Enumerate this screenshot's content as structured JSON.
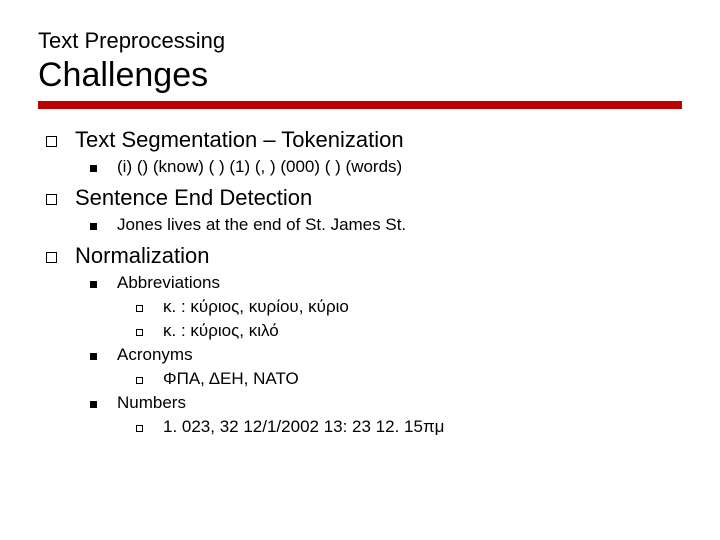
{
  "pretitle": "Text Preprocessing",
  "title": "Challenges",
  "colors": {
    "underline": "#c00000",
    "text": "#000000",
    "background": "#ffffff"
  },
  "typography": {
    "font_family": "Verdana, Geneva, sans-serif",
    "pretitle_size": 22,
    "title_size": 34,
    "l1_size": 22,
    "l2_size": 17,
    "l3_size": 17
  },
  "items": [
    {
      "label": "Text Segmentation – Tokenization",
      "children": [
        {
          "label": "(i) () (know) ( ) (1) (, ) (000) ( ) (words)"
        }
      ]
    },
    {
      "label": "Sentence End Detection",
      "children": [
        {
          "label": "Jones lives at the end of St. James St."
        }
      ]
    },
    {
      "label": "Normalization",
      "children": [
        {
          "label": "Abbreviations",
          "children": [
            {
              "label": "κ. : κύριος, κυρίου, κύριο"
            },
            {
              "label": "κ. : κύριος, κιλό"
            }
          ]
        },
        {
          "label": "Acronyms",
          "children": [
            {
              "label": "ΦΠΑ, ΔΕΗ, ΝΑΤΟ"
            }
          ]
        },
        {
          "label": "Numbers",
          "children": [
            {
              "label": "1. 023, 32  12/1/2002  13: 23  12. 15πμ"
            }
          ]
        }
      ]
    }
  ]
}
